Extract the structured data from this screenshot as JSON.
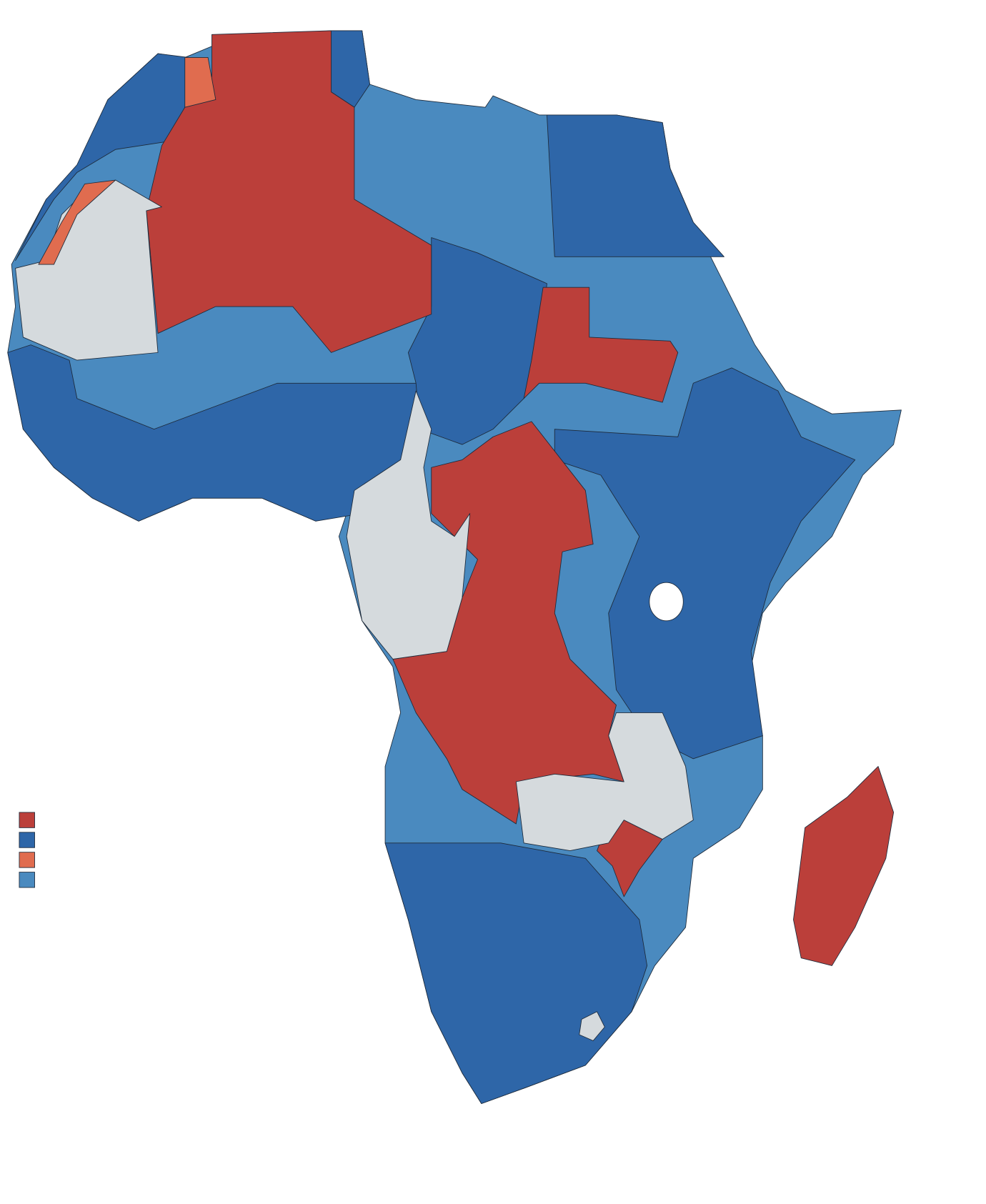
{
  "legend": {
    "colors": [
      "#bb3f3a",
      "#2e66a8",
      "#e06c4f",
      "#4a8abf"
    ]
  }
}
